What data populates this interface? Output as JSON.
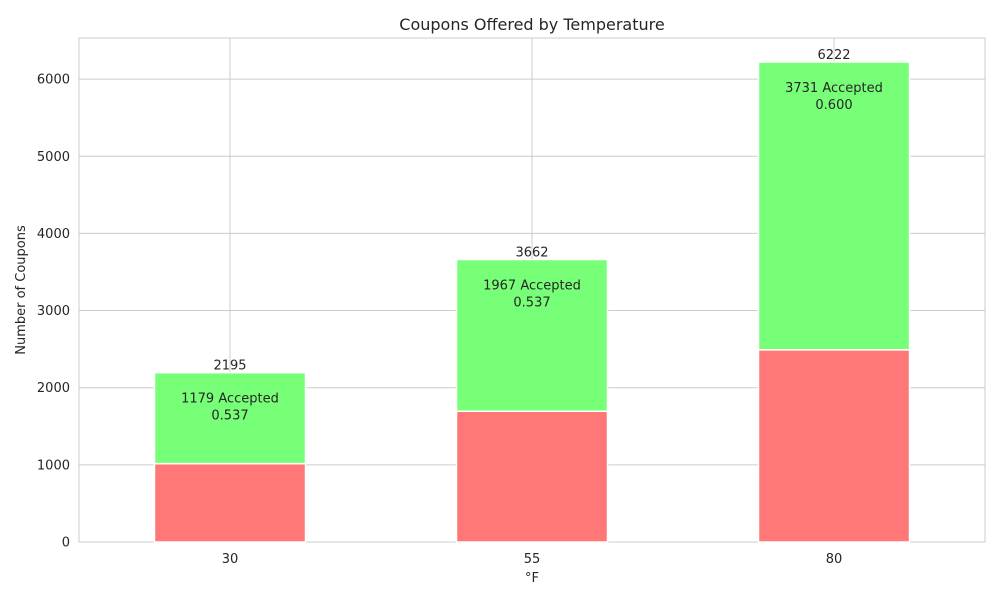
{
  "chart_data": {
    "type": "bar",
    "stacked": true,
    "title": "Coupons Offered by Temperature",
    "xlabel": "°F",
    "ylabel": "Number of Coupons",
    "categories": [
      "30",
      "55",
      "80"
    ],
    "ylim": [
      0,
      6533
    ],
    "yticks": [
      0,
      1000,
      2000,
      3000,
      4000,
      5000,
      6000
    ],
    "grid": true,
    "series": [
      {
        "values": [
          1016,
          1695,
          2491
        ],
        "color": "#ff7777"
      },
      {
        "values": [
          1179,
          1967,
          3731
        ],
        "color": "#77ff77"
      }
    ],
    "totals": [
      2195,
      3662,
      6222
    ],
    "total_labels": [
      "2195",
      "3662",
      "6222"
    ],
    "accepted_labels": [
      "1179 Accepted",
      "1967 Accepted",
      "3731 Accepted"
    ],
    "rate_labels": [
      "0.537",
      "0.537",
      "0.600"
    ]
  },
  "colors": {
    "grid": "#cccccc",
    "background": "#ffffff",
    "text": "#262626"
  }
}
